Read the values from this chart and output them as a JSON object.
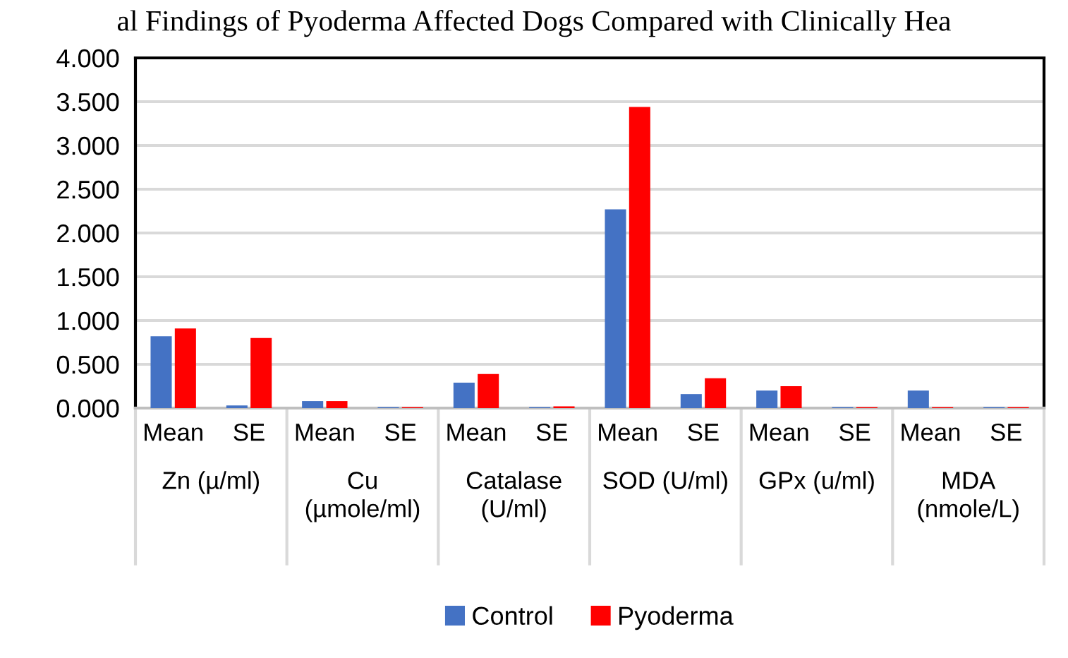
{
  "chart_data": {
    "type": "bar",
    "title": "al Findings of Pyoderma Affected Dogs Compared with Clinically Hea",
    "categories": [
      "Mean",
      "SE",
      "Mean",
      "SE",
      "Mean",
      "SE",
      "Mean",
      "SE",
      "Mean",
      "SE",
      "Mean",
      "SE"
    ],
    "annotations": [
      "Zn (µ/ml)",
      "Cu\n(µmole/ml)",
      "Catalase\n(U/ml)",
      "SOD (U/ml)",
      "GPx (u/ml)",
      "MDA\n(nmole/L)"
    ],
    "series": [
      {
        "name": "Control",
        "color": "#4472c4",
        "values": [
          0.82,
          0.03,
          0.08,
          0.01,
          0.29,
          0.01,
          2.27,
          0.16,
          0.2,
          0.01,
          0.2,
          0.01
        ]
      },
      {
        "name": "Pyoderma",
        "color": "#ff0000",
        "values": [
          0.91,
          0.8,
          0.08,
          0.01,
          0.39,
          0.02,
          3.44,
          0.34,
          0.25,
          0.01,
          0.01,
          0.01
        ]
      }
    ],
    "ylim": [
      0,
      4
    ],
    "yticks": [
      {
        "value": 0,
        "label": "0.000"
      },
      {
        "value": 0.5,
        "label": "0.500"
      },
      {
        "value": 1,
        "label": "1.000"
      },
      {
        "value": 1.5,
        "label": "1.500"
      },
      {
        "value": 2,
        "label": "2.000"
      },
      {
        "value": 2.5,
        "label": "2.500"
      },
      {
        "value": 3,
        "label": "3.000"
      },
      {
        "value": 3.5,
        "label": "3.500"
      },
      {
        "value": 4,
        "label": "4.000"
      }
    ],
    "grid": "y",
    "legend": "bottom"
  }
}
